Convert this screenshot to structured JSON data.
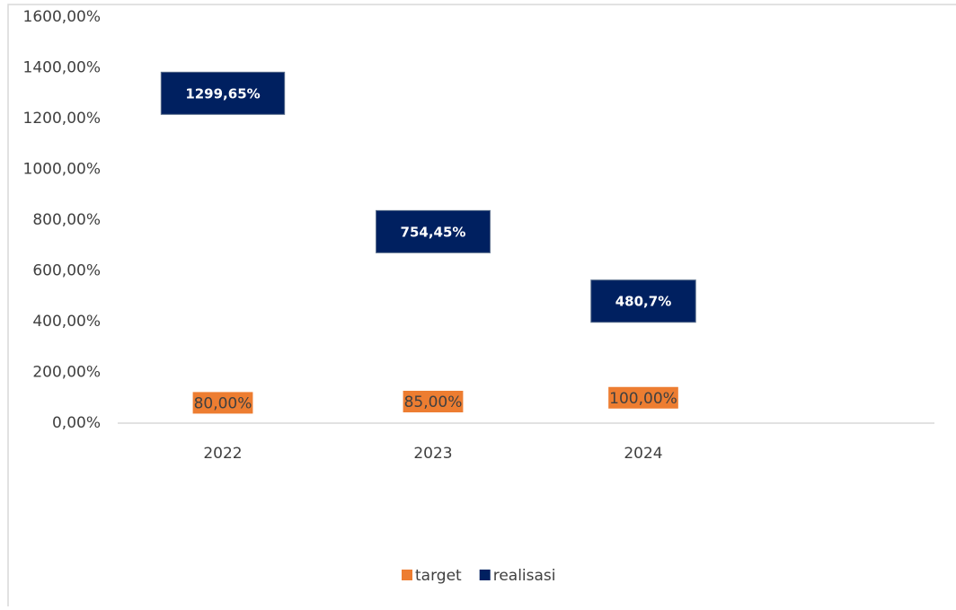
{
  "chart_data": {
    "type": "line",
    "categories": [
      "2022",
      "2023",
      "2024"
    ],
    "series": [
      {
        "name": "target",
        "color": "#ed7d31",
        "values": [
          80,
          85,
          100
        ],
        "value_labels": [
          "80,00%",
          "85,00%",
          "100,00%"
        ]
      },
      {
        "name": "realisasi",
        "color": "#002060",
        "values": [
          1299.65,
          754.45,
          480.7
        ],
        "value_labels": [
          "1299,65%",
          "754,45%",
          "480,7%"
        ]
      }
    ],
    "ylim": [
      0,
      1600
    ],
    "yticks": [
      {
        "value": 0,
        "label": "0,00%"
      },
      {
        "value": 200,
        "label": "200,00%"
      },
      {
        "value": 400,
        "label": "400,00%"
      },
      {
        "value": 600,
        "label": "600,00%"
      },
      {
        "value": 800,
        "label": "800,00%"
      },
      {
        "value": 1000,
        "label": "1000,00%"
      },
      {
        "value": 1200,
        "label": "1200,00%"
      },
      {
        "value": 1400,
        "label": "1400,00%"
      },
      {
        "value": 1600,
        "label": "1600,00%"
      }
    ],
    "legend": "bottom"
  }
}
